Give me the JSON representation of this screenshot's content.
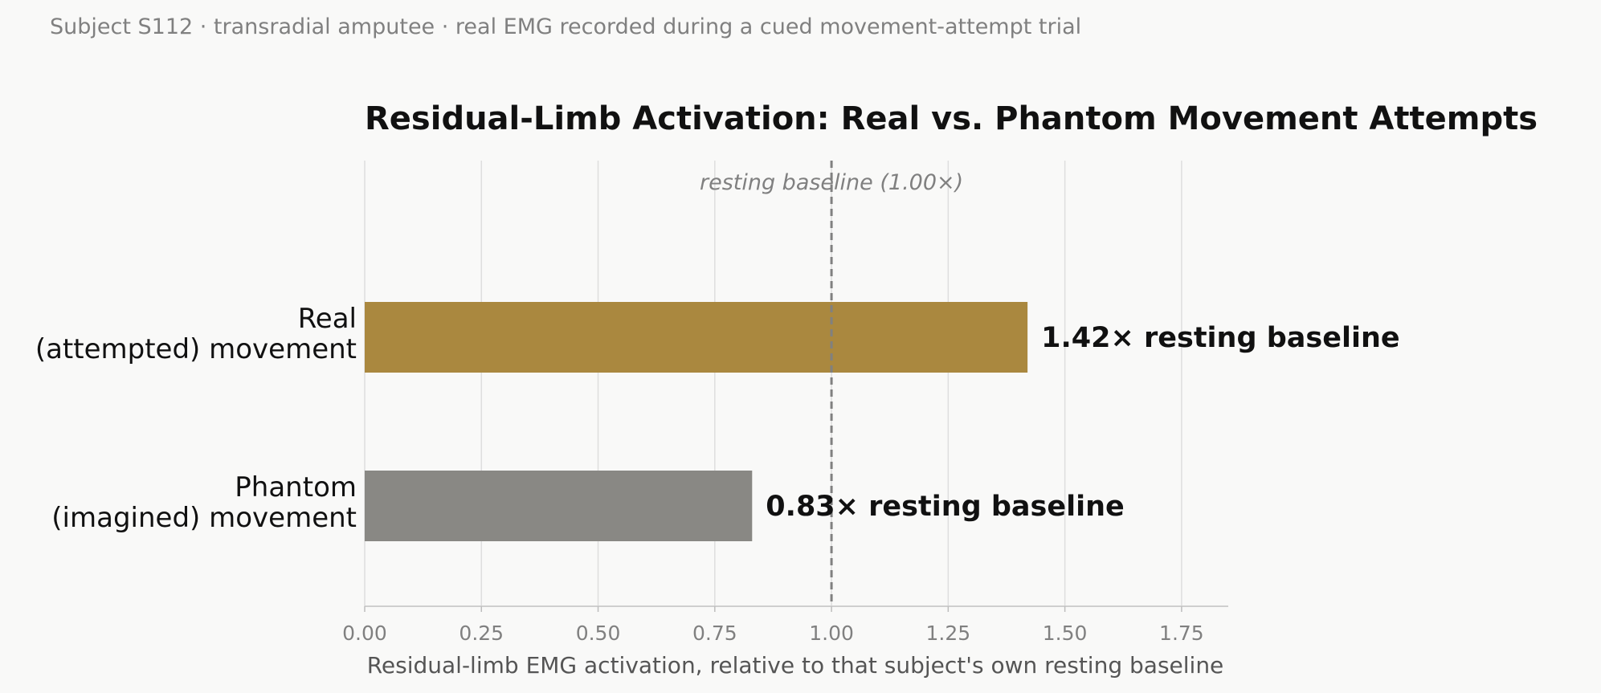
{
  "subtitle": "Subject S112 · transradial amputee · real EMG recorded during a cued movement-attempt trial",
  "chart_data": {
    "type": "bar",
    "orientation": "horizontal",
    "title": "Residual-Limb Activation: Real vs. Phantom Movement Attempts",
    "xlabel": "Residual-limb EMG activation, relative to that subject's own resting baseline",
    "ylabel": "",
    "categories": [
      [
        "Real",
        "(attempted) movement"
      ],
      [
        "Phantom",
        "(imagined) movement"
      ]
    ],
    "values": [
      1.42,
      0.83
    ],
    "value_labels": [
      "1.42× resting baseline",
      "0.83× resting baseline"
    ],
    "colors": [
      "#aa883f",
      "#898884"
    ],
    "xlim": [
      0,
      1.85
    ],
    "xticks": [
      0.0,
      0.25,
      0.5,
      0.75,
      1.0,
      1.25,
      1.5,
      1.75
    ],
    "xtick_labels": [
      "0.00",
      "0.25",
      "0.50",
      "0.75",
      "1.00",
      "1.25",
      "1.50",
      "1.75"
    ],
    "grid": "vertical",
    "reference_line": {
      "x": 1.0,
      "label": "resting baseline (1.00×)",
      "style": "dashed"
    }
  }
}
